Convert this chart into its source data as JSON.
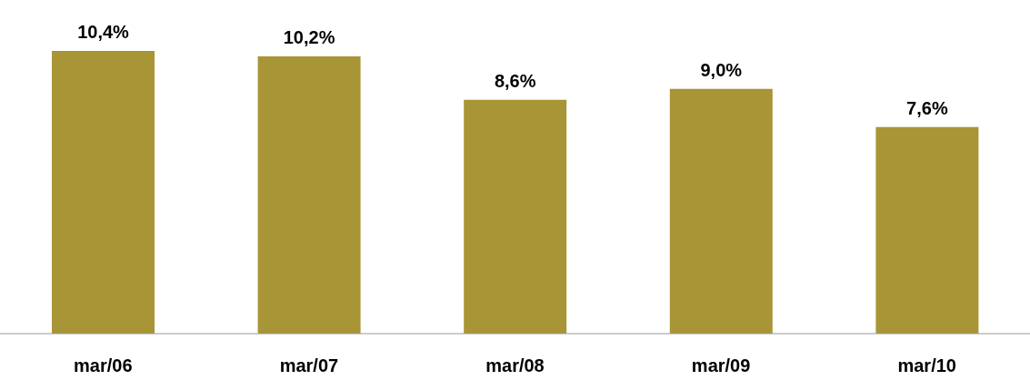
{
  "chart_data": {
    "type": "bar",
    "categories": [
      "mar/06",
      "mar/07",
      "mar/08",
      "mar/09",
      "mar/10"
    ],
    "values": [
      10.4,
      10.2,
      8.6,
      9.0,
      7.6
    ],
    "color": "#a89535",
    "value_labels": [
      "10,4%",
      "10,2%",
      "8,6%",
      "9,0%",
      "7,6%"
    ],
    "grid": false
  }
}
